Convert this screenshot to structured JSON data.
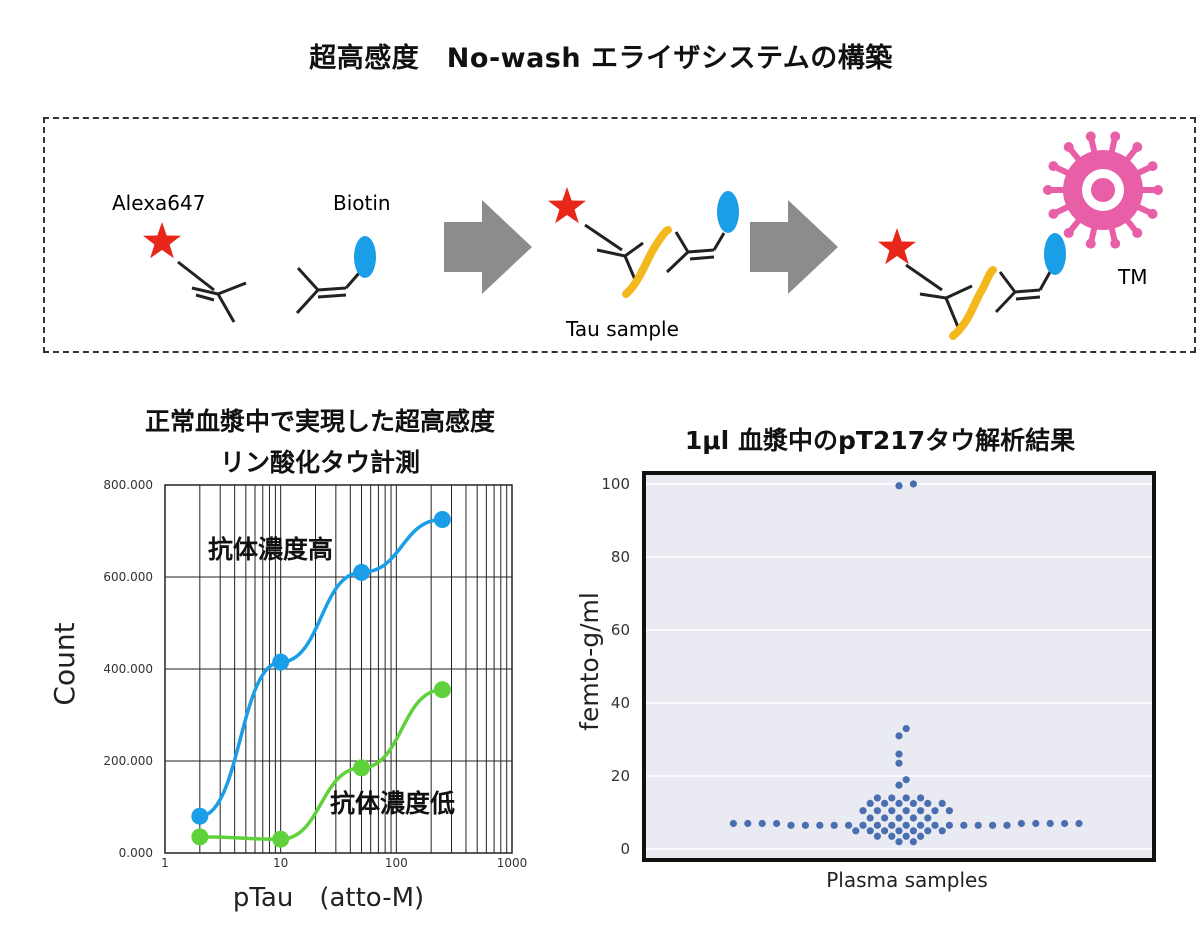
{
  "header": {
    "title": "超高感度　No-wash エライザシステムの構築"
  },
  "schematic": {
    "label_alexa": "Alexa647",
    "label_biotin": "Biotin",
    "label_tau_sample": "Tau sample",
    "label_tm": "TM",
    "colors": {
      "star": "#e8261a",
      "biotin": "#1a9ee8",
      "tau": "#f2b81e",
      "tm": "#e85fa8",
      "arrow": "#8c8c8c"
    }
  },
  "chart_data": [
    {
      "type": "line",
      "title": "正常血漿中で実現した超高感度\nリン酸化タウ計測",
      "title_line1": "正常血漿中で実現した超高感度",
      "title_line2": "リン酸化タウ計測",
      "xlabel": "pTau　(atto-M)",
      "ylabel": "Count",
      "xscale": "log",
      "xlim": [
        1,
        1000
      ],
      "ylim": [
        0,
        800000
      ],
      "xticks": [
        "1",
        "10",
        "100",
        "1000"
      ],
      "yticks": [
        "0.000",
        "200.000",
        "400.000",
        "600.000",
        "800.000"
      ],
      "grid": true,
      "series": [
        {
          "name": "抗体濃度高",
          "color": "#1a9ee8",
          "x": [
            2,
            10,
            50,
            250
          ],
          "y": [
            80000,
            415000,
            610000,
            725000
          ]
        },
        {
          "name": "抗体濃度低",
          "color": "#5fd13a",
          "x": [
            2,
            10,
            50,
            250
          ],
          "y": [
            35000,
            30000,
            185000,
            355000
          ]
        }
      ]
    },
    {
      "type": "scatter",
      "title": "1μl 血漿中のpT217タウ解析結果",
      "xlabel": "Plasma samples",
      "ylabel": "femto-g/ml",
      "ylim": [
        -3,
        103
      ],
      "yticks": [
        "0",
        "20",
        "40",
        "60",
        "80",
        "100"
      ],
      "grid": true,
      "color": "#4a6fb0",
      "values": [
        100,
        99.5,
        33,
        31,
        26,
        23.5,
        19,
        17.5,
        14,
        14,
        14,
        14,
        12.5,
        12.5,
        12.5,
        12.5,
        12.5,
        12.5,
        10.5,
        10.5,
        10.5,
        10.5,
        10.5,
        10.5,
        10.5,
        8.5,
        8.5,
        8.5,
        8.5,
        8.5,
        7,
        7,
        7,
        7,
        7,
        7,
        7,
        7,
        7,
        6.5,
        6.5,
        6.5,
        6.5,
        6.5,
        6.5,
        6.5,
        6.5,
        6.5,
        6.5,
        6.5,
        6.5,
        6.5,
        6.5,
        6.5,
        6.5,
        5,
        5,
        5,
        5,
        5,
        5,
        5,
        3.5,
        3.5,
        3.5,
        3.5,
        2,
        2
      ]
    }
  ]
}
